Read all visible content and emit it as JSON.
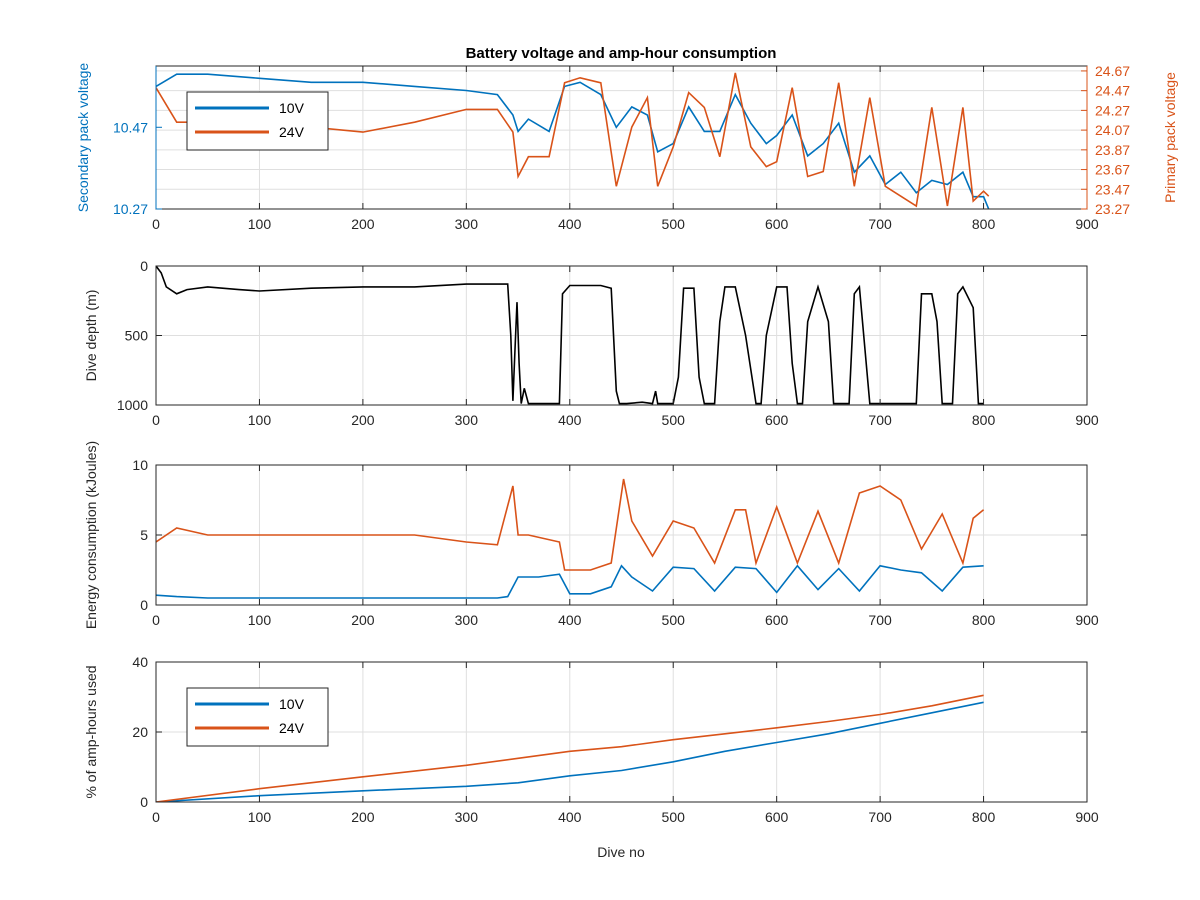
{
  "figure": {
    "title": "Battery voltage and amp-hour consumption",
    "xlabel": "Dive no"
  },
  "colors": {
    "v10": "#0072bd",
    "v24": "#d95319",
    "depth": "#000000",
    "axis": "#262626",
    "grid": "#dfdfdf"
  },
  "chart_data": [
    {
      "id": "voltage",
      "type": "line",
      "title": "Battery voltage and amp-hour consumption",
      "xlabel": "",
      "ylabel": "Secondary pack voltage",
      "ylabel_right": "Primary pack voltage",
      "xlim": [
        0,
        900
      ],
      "ylim": [
        10.27,
        10.62
      ],
      "ylim_right": [
        23.27,
        24.72
      ],
      "xticks": [
        0,
        100,
        200,
        300,
        400,
        500,
        600,
        700,
        800,
        900
      ],
      "yticks": [
        10.27,
        10.47
      ],
      "yticks_right": [
        23.27,
        23.47,
        23.67,
        23.87,
        24.07,
        24.27,
        24.47,
        24.67
      ],
      "grid": true,
      "legend": "top-left",
      "series": [
        {
          "name": "10V",
          "axis": "left",
          "x": [
            0,
            20,
            50,
            100,
            150,
            200,
            250,
            300,
            330,
            345,
            350,
            360,
            380,
            395,
            410,
            430,
            445,
            460,
            475,
            485,
            500,
            515,
            530,
            545,
            560,
            575,
            590,
            600,
            615,
            630,
            645,
            660,
            675,
            690,
            705,
            720,
            735,
            750,
            765,
            780,
            790,
            800,
            805
          ],
          "y": [
            10.57,
            10.6,
            10.6,
            10.59,
            10.58,
            10.58,
            10.57,
            10.56,
            10.55,
            10.5,
            10.46,
            10.49,
            10.46,
            10.57,
            10.58,
            10.55,
            10.47,
            10.52,
            10.5,
            10.41,
            10.43,
            10.52,
            10.46,
            10.46,
            10.55,
            10.48,
            10.43,
            10.45,
            10.5,
            10.4,
            10.43,
            10.48,
            10.36,
            10.4,
            10.33,
            10.36,
            10.31,
            10.34,
            10.33,
            10.36,
            10.3,
            10.3,
            10.27
          ]
        },
        {
          "name": "24V",
          "axis": "right",
          "x": [
            0,
            20,
            50,
            100,
            150,
            200,
            250,
            300,
            330,
            345,
            350,
            360,
            380,
            395,
            410,
            430,
            445,
            460,
            475,
            485,
            500,
            515,
            530,
            545,
            560,
            575,
            590,
            600,
            615,
            630,
            645,
            660,
            675,
            690,
            705,
            720,
            735,
            750,
            765,
            780,
            790,
            800,
            805
          ],
          "y": [
            24.5,
            24.15,
            24.15,
            24.15,
            24.1,
            24.05,
            24.15,
            24.28,
            24.28,
            24.05,
            23.6,
            23.8,
            23.8,
            24.55,
            24.6,
            24.55,
            23.5,
            24.1,
            24.4,
            23.5,
            23.9,
            24.45,
            24.3,
            23.8,
            24.65,
            23.9,
            23.7,
            23.75,
            24.5,
            23.6,
            23.65,
            24.55,
            23.5,
            24.4,
            23.5,
            23.4,
            23.3,
            24.3,
            23.3,
            24.3,
            23.35,
            23.45,
            23.4
          ]
        }
      ]
    },
    {
      "id": "depth",
      "type": "line",
      "xlabel": "",
      "ylabel": "Dive depth (m)",
      "xlim": [
        0,
        900
      ],
      "ylim": [
        0,
        1000
      ],
      "y_reversed": true,
      "xticks": [
        0,
        100,
        200,
        300,
        400,
        500,
        600,
        700,
        800,
        900
      ],
      "yticks": [
        0,
        500,
        1000
      ],
      "grid": true,
      "series": [
        {
          "x": [
            0,
            5,
            10,
            20,
            30,
            50,
            80,
            100,
            150,
            200,
            250,
            300,
            340,
            343,
            345,
            347,
            349,
            351,
            353,
            356,
            360,
            385,
            390,
            393,
            400,
            430,
            440,
            445,
            448,
            455,
            470,
            480,
            483,
            485,
            487,
            490,
            500,
            505,
            510,
            520,
            525,
            530,
            540,
            545,
            550,
            560,
            570,
            580,
            585,
            590,
            600,
            610,
            615,
            620,
            625,
            630,
            640,
            650,
            655,
            660,
            670,
            675,
            680,
            690,
            695,
            700,
            710,
            730,
            735,
            740,
            750,
            755,
            760,
            770,
            775,
            780,
            790,
            795,
            800
          ],
          "y": [
            0,
            50,
            150,
            200,
            170,
            150,
            170,
            180,
            160,
            150,
            150,
            130,
            130,
            500,
            970,
            600,
            260,
            700,
            990,
            880,
            990,
            990,
            990,
            200,
            140,
            140,
            160,
            900,
            990,
            990,
            980,
            990,
            900,
            990,
            990,
            990,
            990,
            800,
            160,
            160,
            800,
            990,
            990,
            400,
            150,
            150,
            500,
            990,
            990,
            500,
            150,
            150,
            700,
            990,
            990,
            400,
            150,
            400,
            990,
            990,
            990,
            200,
            150,
            990,
            990,
            990,
            990,
            990,
            990,
            200,
            200,
            400,
            990,
            990,
            200,
            150,
            300,
            990,
            990
          ]
        }
      ]
    },
    {
      "id": "energy",
      "type": "line",
      "xlabel": "",
      "ylabel": "Energy consumption (kJoules)",
      "xlim": [
        0,
        900
      ],
      "ylim": [
        0,
        10
      ],
      "xticks": [
        0,
        100,
        200,
        300,
        400,
        500,
        600,
        700,
        800,
        900
      ],
      "yticks": [
        0,
        5,
        10
      ],
      "grid": true,
      "series": [
        {
          "name": "10V",
          "x": [
            0,
            20,
            50,
            100,
            150,
            200,
            250,
            300,
            330,
            340,
            350,
            370,
            390,
            400,
            420,
            440,
            450,
            460,
            480,
            500,
            520,
            540,
            560,
            580,
            600,
            620,
            640,
            660,
            680,
            700,
            720,
            740,
            760,
            780,
            800
          ],
          "y": [
            0.7,
            0.6,
            0.5,
            0.5,
            0.5,
            0.5,
            0.5,
            0.5,
            0.5,
            0.6,
            2.0,
            2.0,
            2.2,
            0.8,
            0.8,
            1.3,
            2.8,
            2.0,
            1.0,
            2.7,
            2.6,
            1.0,
            2.7,
            2.6,
            0.9,
            2.8,
            1.1,
            2.6,
            1.0,
            2.8,
            2.5,
            2.3,
            1.0,
            2.7,
            2.8
          ]
        },
        {
          "name": "24V",
          "x": [
            0,
            20,
            50,
            100,
            150,
            200,
            250,
            300,
            330,
            345,
            350,
            355,
            360,
            390,
            395,
            420,
            440,
            452,
            460,
            480,
            500,
            520,
            540,
            560,
            570,
            580,
            600,
            620,
            640,
            660,
            680,
            700,
            720,
            740,
            760,
            780,
            790,
            800
          ],
          "y": [
            4.5,
            5.5,
            5.0,
            5.0,
            5.0,
            5.0,
            5.0,
            4.5,
            4.3,
            8.5,
            5.0,
            5.0,
            5.0,
            4.5,
            2.5,
            2.5,
            3.0,
            9.0,
            6.0,
            3.5,
            6.0,
            5.5,
            3.0,
            6.8,
            6.8,
            3.0,
            7.0,
            3.0,
            6.7,
            3.0,
            8.0,
            8.5,
            7.5,
            4.0,
            6.5,
            3.0,
            6.2,
            6.8
          ]
        }
      ]
    },
    {
      "id": "amphours",
      "type": "line",
      "xlabel": "Dive no",
      "ylabel": "% of amp-hours used",
      "xlim": [
        0,
        900
      ],
      "ylim": [
        0,
        40
      ],
      "xticks": [
        0,
        100,
        200,
        300,
        400,
        500,
        600,
        700,
        800,
        900
      ],
      "yticks": [
        0,
        20,
        40
      ],
      "grid": true,
      "legend": "top-left",
      "series": [
        {
          "name": "10V",
          "x": [
            0,
            100,
            200,
            300,
            350,
            400,
            450,
            500,
            550,
            600,
            650,
            700,
            750,
            800
          ],
          "y": [
            0,
            1.8,
            3.2,
            4.5,
            5.5,
            7.5,
            9.0,
            11.5,
            14.5,
            17.0,
            19.5,
            22.5,
            25.5,
            28.5
          ]
        },
        {
          "name": "24V",
          "x": [
            0,
            100,
            200,
            300,
            350,
            400,
            450,
            500,
            550,
            600,
            650,
            700,
            750,
            800
          ],
          "y": [
            0,
            3.8,
            7.2,
            10.5,
            12.5,
            14.5,
            15.8,
            17.8,
            19.5,
            21.2,
            23.0,
            25.0,
            27.5,
            30.5
          ]
        }
      ]
    }
  ]
}
